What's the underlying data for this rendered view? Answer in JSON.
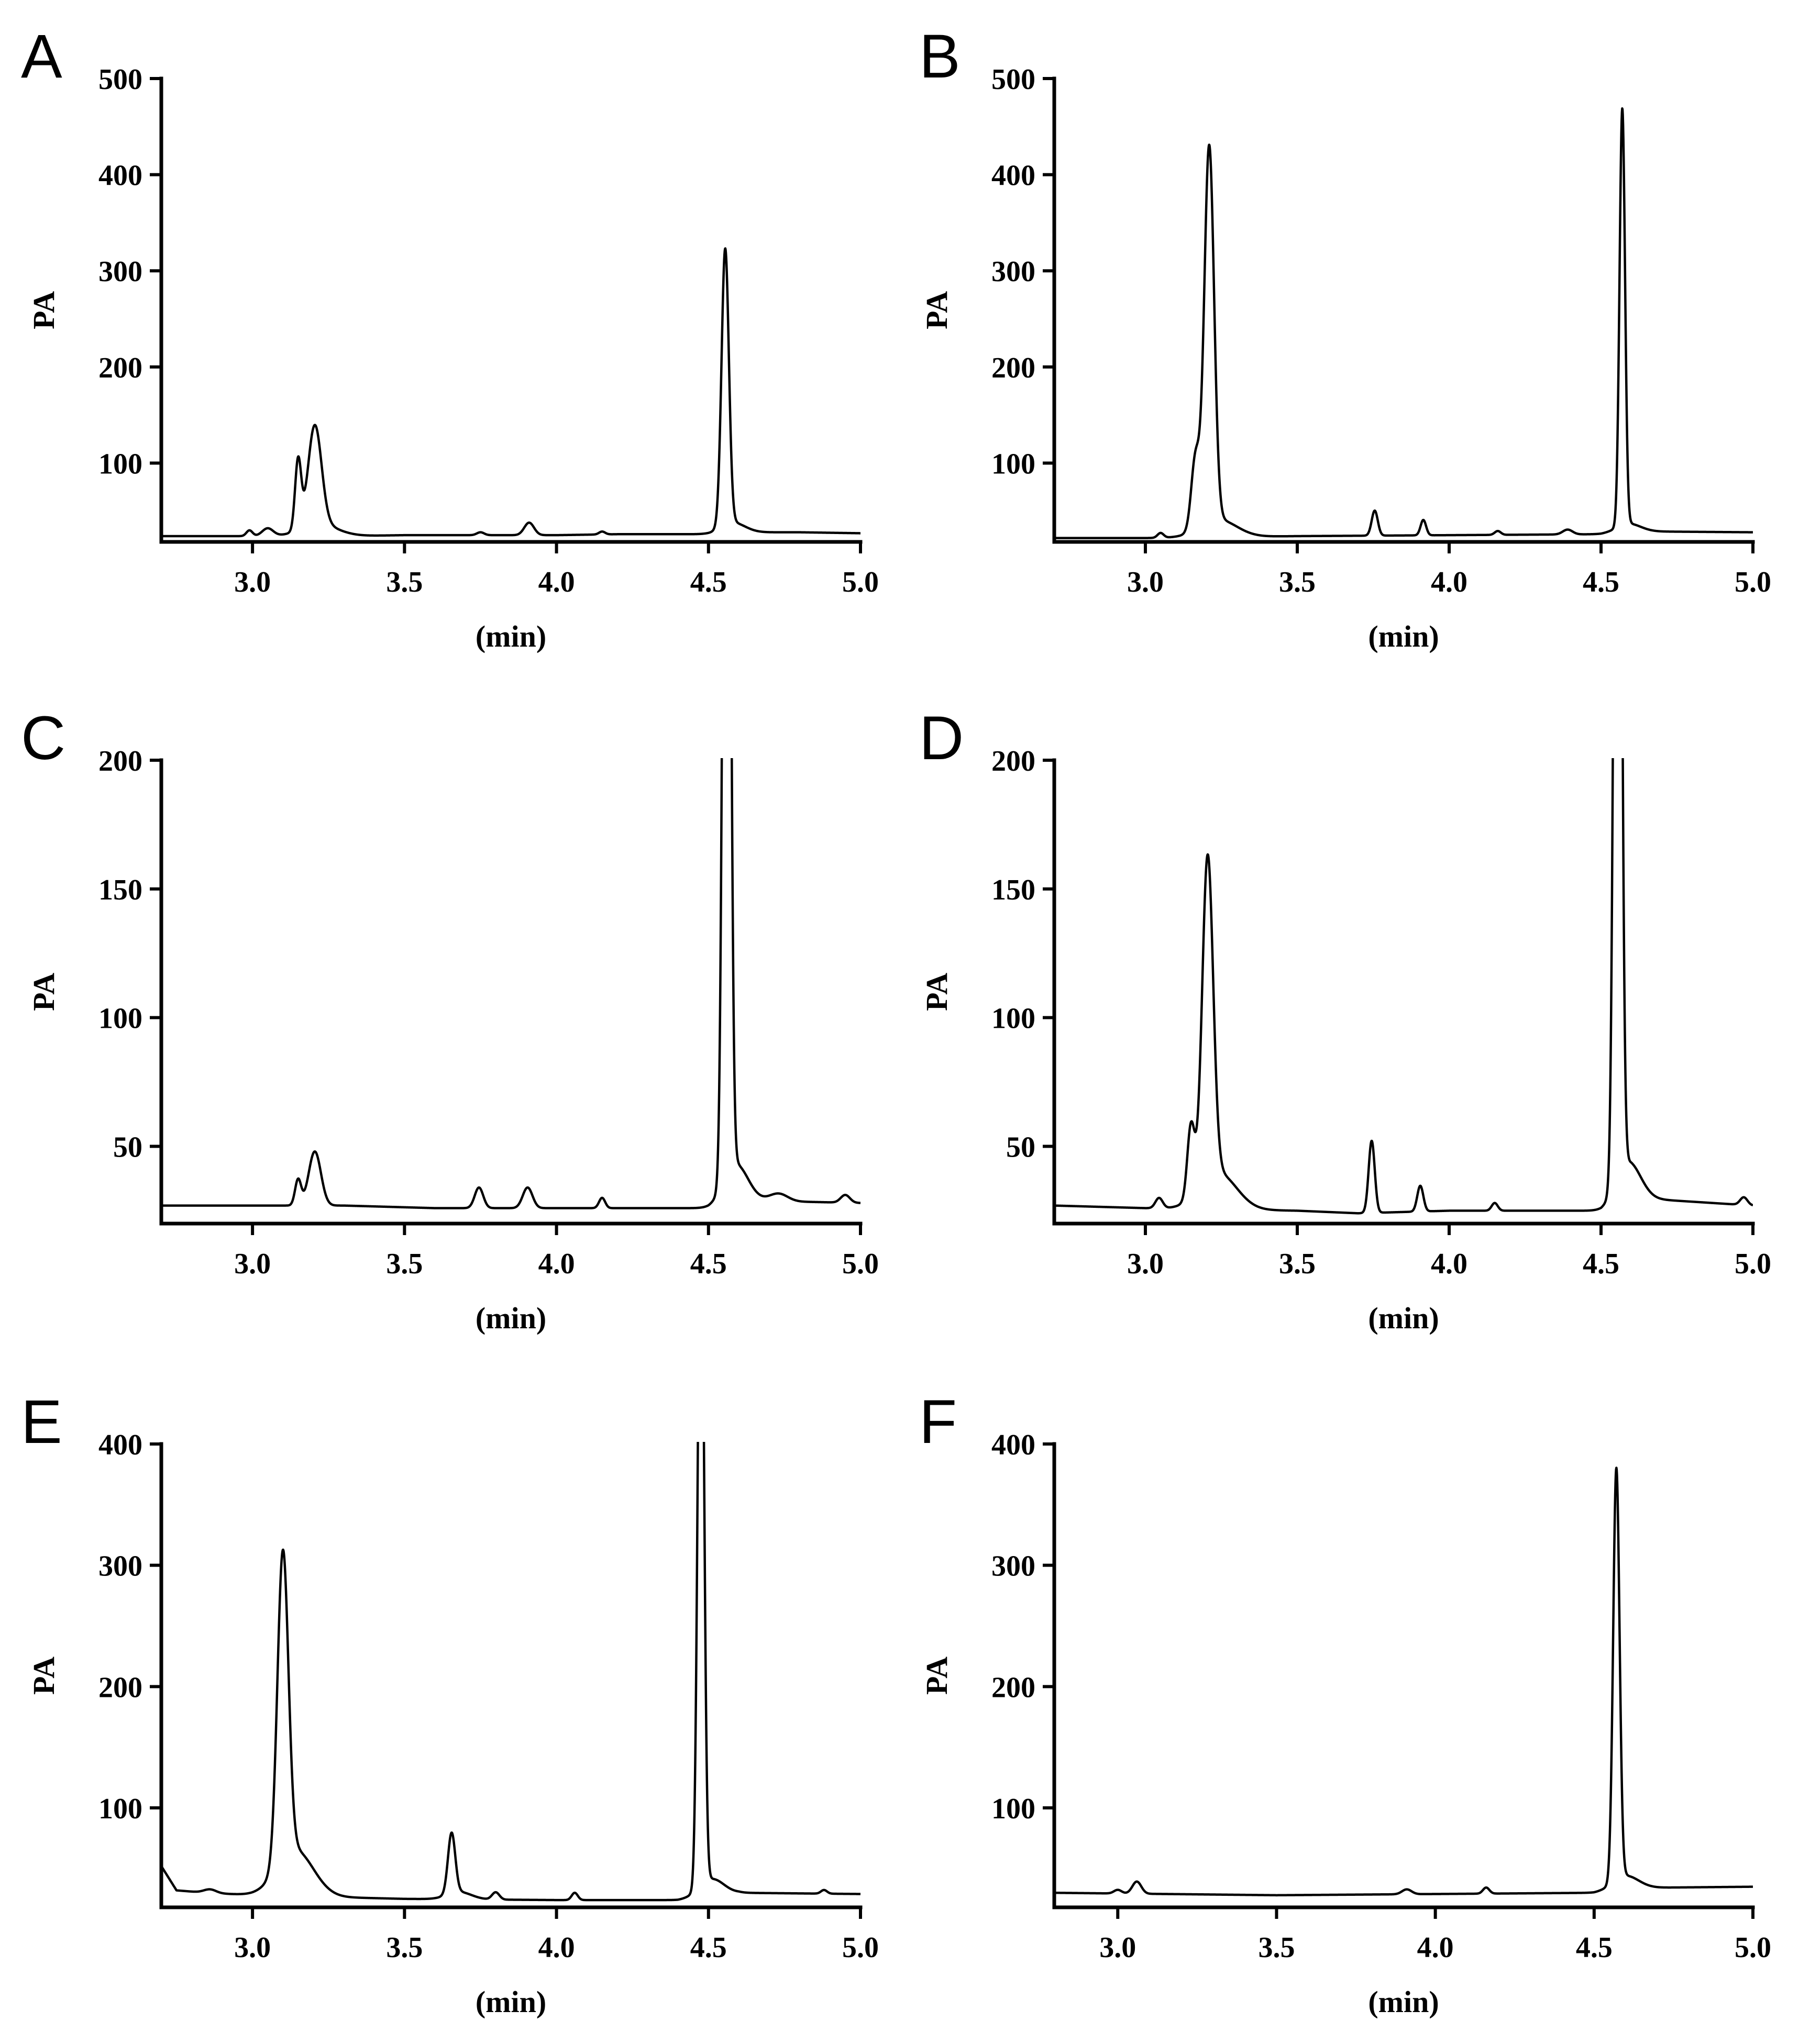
{
  "figure": {
    "type": "multi-panel chromatogram"
  },
  "chart_data": [
    {
      "panel": "A",
      "type": "line",
      "xlabel": "(min)",
      "ylabel": "PA",
      "xlim": [
        2.7,
        5.0
      ],
      "ylim": [
        18,
        500
      ],
      "xticks": [
        3.0,
        3.5,
        4.0,
        4.5,
        5.0
      ],
      "xtick_labels": [
        "3.0",
        "3.5",
        "4.0",
        "4.5",
        "5.0"
      ],
      "yticks": [
        100,
        200,
        300,
        400,
        500
      ],
      "ytick_labels": [
        "100",
        "200",
        "300",
        "400",
        "500"
      ],
      "baseline": [
        [
          2.7,
          24
        ],
        [
          3.3,
          24
        ],
        [
          3.5,
          25
        ],
        [
          4.0,
          25
        ],
        [
          4.2,
          26
        ],
        [
          4.5,
          26
        ],
        [
          4.6,
          28
        ],
        [
          4.8,
          28
        ],
        [
          5.0,
          27
        ]
      ],
      "peaks": [
        [
          2.99,
          6,
          0.01
        ],
        [
          3.05,
          8,
          0.018
        ],
        [
          3.15,
          72,
          0.01
        ],
        [
          3.205,
          104,
          0.022
        ],
        [
          3.22,
          12,
          0.06
        ],
        [
          3.75,
          3,
          0.012
        ],
        [
          3.91,
          13,
          0.016
        ],
        [
          4.15,
          3,
          0.01
        ],
        [
          4.555,
          288,
          0.012
        ],
        [
          4.58,
          10,
          0.04
        ]
      ]
    },
    {
      "panel": "B",
      "type": "line",
      "xlabel": "(min)",
      "ylabel": "PA",
      "xlim": [
        2.7,
        5.0
      ],
      "ylim": [
        18,
        500
      ],
      "xticks": [
        3.0,
        3.5,
        4.0,
        4.5,
        5.0
      ],
      "xtick_labels": [
        "3.0",
        "3.5",
        "4.0",
        "4.5",
        "5.0"
      ],
      "yticks": [
        100,
        200,
        300,
        400,
        500
      ],
      "ytick_labels": [
        "100",
        "200",
        "300",
        "400",
        "500"
      ],
      "baseline": [
        [
          2.7,
          22
        ],
        [
          3.0,
          22
        ],
        [
          3.5,
          24
        ],
        [
          4.0,
          25
        ],
        [
          4.5,
          26
        ],
        [
          4.6,
          29
        ],
        [
          5.0,
          28
        ]
      ],
      "peaks": [
        [
          3.05,
          5,
          0.01
        ],
        [
          3.165,
          75,
          0.014
        ],
        [
          3.21,
          392,
          0.016
        ],
        [
          3.24,
          18,
          0.06
        ],
        [
          3.755,
          26,
          0.01
        ],
        [
          3.915,
          16,
          0.009
        ],
        [
          4.16,
          4,
          0.01
        ],
        [
          4.39,
          5,
          0.016
        ],
        [
          4.57,
          434,
          0.009
        ],
        [
          4.59,
          8,
          0.04
        ]
      ]
    },
    {
      "panel": "C",
      "type": "line",
      "xlabel": "(min)",
      "ylabel": "PA",
      "xlim": [
        2.7,
        5.0
      ],
      "ylim": [
        20,
        200
      ],
      "xticks": [
        3.0,
        3.5,
        4.0,
        4.5,
        5.0
      ],
      "xtick_labels": [
        "3.0",
        "3.5",
        "4.0",
        "4.5",
        "5.0"
      ],
      "yticks": [
        50,
        100,
        150,
        200
      ],
      "ytick_labels": [
        "50",
        "100",
        "150",
        "200"
      ],
      "baseline": [
        [
          2.7,
          27
        ],
        [
          3.0,
          27
        ],
        [
          3.3,
          27
        ],
        [
          3.6,
          26
        ],
        [
          4.0,
          26
        ],
        [
          4.5,
          26
        ],
        [
          4.6,
          29
        ],
        [
          5.0,
          28
        ]
      ],
      "peaks": [
        [
          3.15,
          10,
          0.01
        ],
        [
          3.205,
          21,
          0.02
        ],
        [
          3.745,
          8,
          0.014
        ],
        [
          3.905,
          8,
          0.016
        ],
        [
          4.15,
          4,
          0.01
        ],
        [
          4.56,
          500,
          0.011
        ],
        [
          4.59,
          14,
          0.04
        ],
        [
          4.73,
          3,
          0.03
        ],
        [
          4.95,
          3,
          0.015
        ]
      ]
    },
    {
      "panel": "D",
      "type": "line",
      "xlabel": "(min)",
      "ylabel": "PA",
      "xlim": [
        2.7,
        5.0
      ],
      "ylim": [
        20,
        200
      ],
      "xticks": [
        3.0,
        3.5,
        4.0,
        4.5,
        5.0
      ],
      "xtick_labels": [
        "3.0",
        "3.5",
        "4.0",
        "4.5",
        "5.0"
      ],
      "yticks": [
        50,
        100,
        150,
        200
      ],
      "ytick_labels": [
        "50",
        "100",
        "150",
        "200"
      ],
      "baseline": [
        [
          2.7,
          27
        ],
        [
          3.0,
          26
        ],
        [
          3.5,
          25
        ],
        [
          3.7,
          24
        ],
        [
          4.0,
          25
        ],
        [
          4.5,
          25
        ],
        [
          4.6,
          30
        ],
        [
          5.0,
          27
        ]
      ],
      "peaks": [
        [
          3.045,
          4,
          0.012
        ],
        [
          3.15,
          28,
          0.012
        ],
        [
          3.205,
          126,
          0.018
        ],
        [
          3.24,
          14,
          0.06
        ],
        [
          3.745,
          28,
          0.01
        ],
        [
          3.905,
          10,
          0.01
        ],
        [
          4.15,
          3,
          0.01
        ],
        [
          4.555,
          500,
          0.011
        ],
        [
          4.59,
          14,
          0.04
        ],
        [
          4.97,
          3,
          0.012
        ]
      ]
    },
    {
      "panel": "E",
      "type": "line",
      "xlabel": "(min)",
      "ylabel": "PA",
      "xlim": [
        2.7,
        5.0
      ],
      "ylim": [
        18,
        400
      ],
      "xticks": [
        3.0,
        3.5,
        4.0,
        4.5,
        5.0
      ],
      "xtick_labels": [
        "3.0",
        "3.5",
        "4.0",
        "4.5",
        "5.0"
      ],
      "yticks": [
        100,
        200,
        300,
        400
      ],
      "ytick_labels": [
        "100",
        "200",
        "300",
        "400"
      ],
      "baseline": [
        [
          2.7,
          52
        ],
        [
          2.75,
          32
        ],
        [
          2.85,
          30
        ],
        [
          3.0,
          28
        ],
        [
          3.5,
          25
        ],
        [
          4.0,
          24
        ],
        [
          4.4,
          24
        ],
        [
          4.6,
          30
        ],
        [
          5.0,
          29
        ]
      ],
      "peaks": [
        [
          2.86,
          3,
          0.02
        ],
        [
          3.1,
          255,
          0.018
        ],
        [
          3.14,
          38,
          0.06
        ],
        [
          3.655,
          50,
          0.012
        ],
        [
          3.68,
          6,
          0.04
        ],
        [
          3.8,
          6,
          0.012
        ],
        [
          4.06,
          6,
          0.01
        ],
        [
          4.475,
          600,
          0.01
        ],
        [
          4.51,
          14,
          0.04
        ],
        [
          4.88,
          3,
          0.01
        ]
      ]
    },
    {
      "panel": "F",
      "type": "line",
      "xlabel": "(min)",
      "ylabel": "PA",
      "xlim": [
        2.8,
        5.0
      ],
      "ylim": [
        18,
        400
      ],
      "xticks": [
        3.0,
        3.5,
        4.0,
        4.5,
        5.0
      ],
      "xtick_labels": [
        "3.0",
        "3.5",
        "4.0",
        "4.5",
        "5.0"
      ],
      "yticks": [
        100,
        200,
        300,
        400
      ],
      "ytick_labels": [
        "100",
        "200",
        "300",
        "400"
      ],
      "baseline": [
        [
          2.8,
          30
        ],
        [
          3.5,
          28
        ],
        [
          4.0,
          29
        ],
        [
          4.5,
          30
        ],
        [
          4.6,
          34
        ],
        [
          5.0,
          35
        ]
      ],
      "peaks": [
        [
          3.0,
          3,
          0.012
        ],
        [
          3.06,
          10,
          0.014
        ],
        [
          3.91,
          4,
          0.015
        ],
        [
          4.16,
          5,
          0.01
        ],
        [
          4.57,
          340,
          0.01
        ],
        [
          4.6,
          10,
          0.04
        ]
      ]
    }
  ]
}
